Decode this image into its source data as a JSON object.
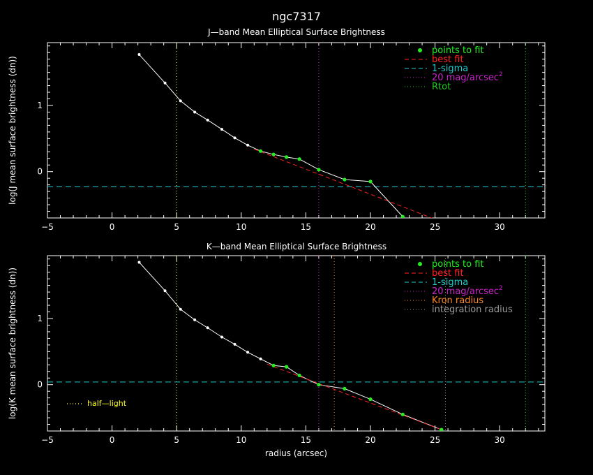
{
  "figure_title": "ngc7317",
  "colors": {
    "background": "#000000",
    "axes": "#ffffff",
    "data_line": "#ffffff",
    "fit_points": "#22ee22",
    "best_fit": "#ff2222",
    "one_sigma": "#22cccc",
    "mag20": "#cc22cc",
    "rtot": "#22cc22",
    "kron": "#ff8822",
    "integration": "#999999",
    "half_light": "#ffff22"
  },
  "chart_data": [
    {
      "type": "line",
      "title": "J—band Mean Elliptical Surface Brightness",
      "xlabel": "",
      "ylabel": "log(J mean surface brightness (dn))",
      "xlim": [
        -5,
        33.5
      ],
      "ylim": [
        -0.7,
        1.95
      ],
      "xticks": [
        -5,
        0,
        5,
        10,
        15,
        20,
        25,
        30
      ],
      "xtick_labels": [
        "−5",
        "0",
        "5",
        "10",
        "15",
        "20",
        "25",
        "30"
      ],
      "yticks": [
        0,
        1
      ],
      "ytick_labels": [
        "0",
        "1"
      ],
      "data": {
        "x": [
          2.1,
          4.1,
          5.3,
          6.4,
          7.4,
          8.5,
          9.5,
          10.5,
          11.5,
          12.5,
          13.5,
          14.5,
          16.0,
          18.0,
          20.0,
          22.5
        ],
        "y": [
          1.77,
          1.34,
          1.07,
          0.9,
          0.78,
          0.64,
          0.51,
          0.4,
          0.31,
          0.26,
          0.22,
          0.19,
          0.03,
          -0.12,
          -0.15,
          -0.68
        ]
      },
      "fit_points": {
        "name": "points to fit",
        "x": [
          11.5,
          12.5,
          13.5,
          14.5,
          16.0,
          18.0,
          20.0,
          22.5
        ],
        "y": [
          0.31,
          0.26,
          0.22,
          0.19,
          0.03,
          -0.12,
          -0.15,
          -0.68
        ]
      },
      "best_fit": {
        "name": "best fit",
        "x": [
          11.0,
          25.0
        ],
        "y": [
          0.34,
          -0.72
        ]
      },
      "one_sigma": {
        "name": "1-sigma",
        "y": -0.23
      },
      "mag20": {
        "name": "20 mag/arcsec",
        "superscript": "2",
        "x": 16.0
      },
      "rtot": {
        "name": "Rtot",
        "x": 32.0
      },
      "half_light_radius": 5.0,
      "legend": {
        "placement": "top-right",
        "entries": [
          {
            "label": "points to fit",
            "style": "point",
            "color_key": "fit_points"
          },
          {
            "label": "best fit",
            "style": "dashed",
            "color_key": "best_fit"
          },
          {
            "label": "1-sigma",
            "style": "dashed",
            "color_key": "one_sigma"
          },
          {
            "label": "20 mag/arcsec",
            "sup": "2",
            "style": "dotted",
            "color_key": "mag20"
          },
          {
            "label": "Rtot",
            "style": "dotted",
            "color_key": "rtot"
          }
        ]
      }
    },
    {
      "type": "line",
      "title": "K—band Mean Elliptical Surface Brightness",
      "xlabel": "radius (arcsec)",
      "ylabel": "log(K mean surface brightness (dn))",
      "xlim": [
        -5,
        33.5
      ],
      "ylim": [
        -0.7,
        1.95
      ],
      "xticks": [
        -5,
        0,
        5,
        10,
        15,
        20,
        25,
        30
      ],
      "xtick_labels": [
        "−5",
        "0",
        "5",
        "10",
        "15",
        "20",
        "25",
        "30"
      ],
      "yticks": [
        0,
        1
      ],
      "ytick_labels": [
        "0",
        "1"
      ],
      "data": {
        "x": [
          2.1,
          4.1,
          5.3,
          6.4,
          7.4,
          8.5,
          9.5,
          10.5,
          11.5,
          12.5,
          13.5,
          14.5,
          16.0,
          18.0,
          20.0,
          22.5,
          25.5
        ],
        "y": [
          1.85,
          1.42,
          1.14,
          0.98,
          0.86,
          0.72,
          0.61,
          0.49,
          0.39,
          0.29,
          0.27,
          0.14,
          0.0,
          -0.06,
          -0.22,
          -0.45,
          -0.68
        ]
      },
      "fit_points": {
        "name": "points to fit",
        "x": [
          12.5,
          13.5,
          14.5,
          16.0,
          18.0,
          20.0,
          22.5,
          25.5
        ],
        "y": [
          0.29,
          0.27,
          0.14,
          0.0,
          -0.06,
          -0.22,
          -0.45,
          -0.68
        ]
      },
      "best_fit": {
        "name": "best fit",
        "x": [
          12.0,
          25.5
        ],
        "y": [
          0.31,
          -0.68
        ]
      },
      "one_sigma": {
        "name": "1-sigma",
        "y": 0.04
      },
      "mag20": {
        "name": "20 mag/arcsec",
        "superscript": "2",
        "x": 16.0
      },
      "kron": {
        "name": "Kron radius",
        "x": 17.2
      },
      "integration": {
        "name": "integration radius",
        "x": 25.8
      },
      "rtot_x": 32.0,
      "half_light_radius": 5.0,
      "half_light_label": "half—light",
      "legend": {
        "placement": "top-right",
        "entries": [
          {
            "label": "points to fit",
            "style": "point",
            "color_key": "fit_points"
          },
          {
            "label": "best fit",
            "style": "dashed",
            "color_key": "best_fit"
          },
          {
            "label": "1-sigma",
            "style": "dashed",
            "color_key": "one_sigma"
          },
          {
            "label": "20 mag/arcsec",
            "sup": "2",
            "style": "dotted",
            "color_key": "mag20"
          },
          {
            "label": "Kron radius",
            "style": "dotted",
            "color_key": "kron"
          },
          {
            "label": "integration radius",
            "style": "dotted",
            "color_key": "integration"
          }
        ]
      }
    }
  ]
}
